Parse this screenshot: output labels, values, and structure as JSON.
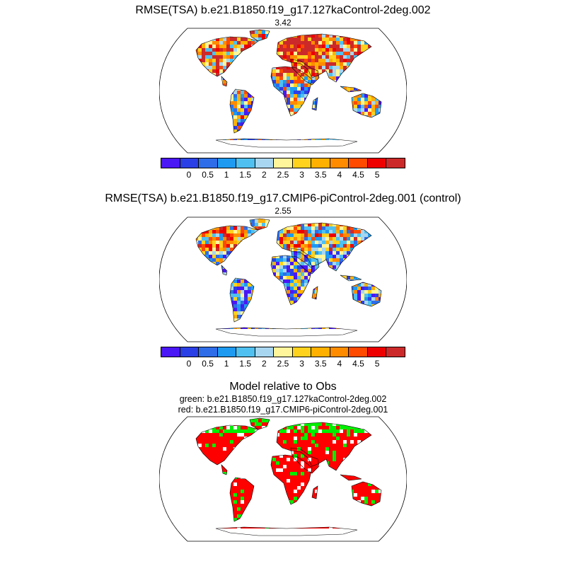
{
  "panels": [
    {
      "title": "RMSE(TSA) b.e21.B1850.f19_g17.127kaControl-2deg.002",
      "value": "3.42"
    },
    {
      "title": "RMSE(TSA) b.e21.B1850.f19_g17.CMIP6-piControl-2deg.001 (control)",
      "value": "2.55"
    }
  ],
  "colorbar": {
    "colors": [
      "#4a17f5",
      "#2b3fe6",
      "#2f6de8",
      "#1e9af0",
      "#4fc0f0",
      "#a8d6f0",
      "#fff59a",
      "#ffd21e",
      "#ffb000",
      "#ff8c00",
      "#ff4a00",
      "#ee0000",
      "#cc2a2a"
    ],
    "labels": [
      "0",
      "0.5",
      "1",
      "1.5",
      "2",
      "2.5",
      "3",
      "3.5",
      "4",
      "4.5",
      "5"
    ]
  },
  "comparison": {
    "title": "Model relative to Obs",
    "legend_green": "green: b.e21.B1850.f19_g17.127kaControl-2deg.002",
    "legend_red": "red: b.e21.B1850.f19_g17.CMIP6-piControl-2deg.001",
    "green_color": "#00ee00",
    "red_color": "#ff0000"
  }
}
